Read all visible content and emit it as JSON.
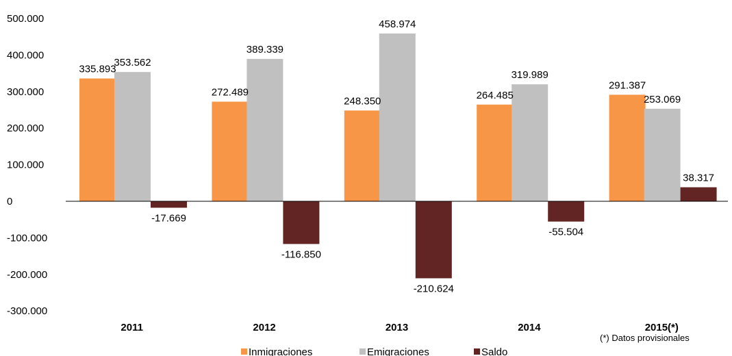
{
  "chart_data": {
    "type": "bar",
    "categories": [
      "2011",
      "2012",
      "2013",
      "2014",
      "2015(*)"
    ],
    "series": [
      {
        "name": "Inmigraciones",
        "color": "#F79646",
        "values": [
          335893,
          272489,
          248350,
          264485,
          291387
        ],
        "labels": [
          "335.893",
          "272.489",
          "248.350",
          "264.485",
          "291.387"
        ]
      },
      {
        "name": "Emigraciones",
        "color": "#C0C0C0",
        "values": [
          353562,
          389339,
          458974,
          319989,
          253069
        ],
        "labels": [
          "353.562",
          "389.339",
          "458.974",
          "319.989",
          "253.069"
        ]
      },
      {
        "name": "Saldo",
        "color": "#632523",
        "values": [
          -17669,
          -116850,
          -210624,
          -55504,
          38317
        ],
        "labels": [
          "-17.669",
          "-116.850",
          "-210.624",
          "-55.504",
          "38.317"
        ]
      }
    ],
    "ylim": [
      -300000,
      500000
    ],
    "yticks": [
      500000,
      400000,
      300000,
      200000,
      100000,
      0,
      -100000,
      -200000,
      -300000
    ],
    "ytick_labels": [
      "500.000",
      "400.000",
      "300.000",
      "200.000",
      "100.000",
      "0",
      "-100.000",
      "-200.000",
      "-300.000"
    ],
    "grid": false,
    "legend": "bottom",
    "note": "(*) Datos provisionales"
  }
}
